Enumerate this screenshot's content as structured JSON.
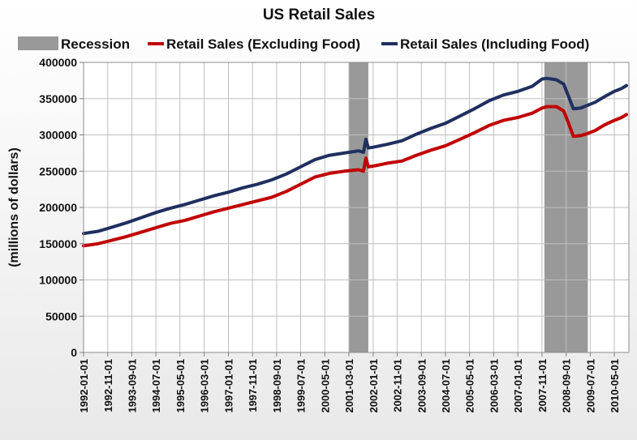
{
  "chart_data": {
    "type": "line",
    "title": "US Retail Sales",
    "ylabel": "(millions of dollars)",
    "xlabel": "",
    "ylim": [
      0,
      400000
    ],
    "yticks": [
      0,
      50000,
      100000,
      150000,
      200000,
      250000,
      300000,
      350000,
      400000
    ],
    "grid": true,
    "legend_position": "top",
    "x_tick_labels": [
      "1992-01-01",
      "1992-11-01",
      "1993-09-01",
      "1994-07-01",
      "1995-05-01",
      "1996-03-01",
      "1997-01-01",
      "1997-11-01",
      "1998-09-01",
      "1999-07-01",
      "2000-05-01",
      "2001-03-01",
      "2002-01-01",
      "2002-11-01",
      "2003-09-01",
      "2004-07-01",
      "2005-05-01",
      "2006-03-01",
      "2007-01-01",
      "2007-11-01",
      "2008-09-01",
      "2009-07-01",
      "2010-05-01"
    ],
    "legend": [
      {
        "name": "Recession",
        "color": "#999999",
        "kind": "area"
      },
      {
        "name": "Retail Sales (Excluding Food)",
        "color": "#c00000",
        "kind": "line"
      },
      {
        "name": "Retail Sales (Including Food)",
        "color": "#1f2f5f",
        "kind": "line"
      }
    ],
    "recessions": [
      {
        "start": "2001-03-01",
        "end": "2001-11-01"
      },
      {
        "start": "2007-12-01",
        "end": "2009-06-01"
      }
    ],
    "series": [
      {
        "name": "Retail Sales (Excluding Food)",
        "color": "#c00000",
        "points": [
          [
            "1992-01-01",
            147000
          ],
          [
            "1992-07-01",
            150000
          ],
          [
            "1993-01-01",
            155000
          ],
          [
            "1993-07-01",
            160000
          ],
          [
            "1994-01-01",
            166000
          ],
          [
            "1994-07-01",
            172000
          ],
          [
            "1995-01-01",
            178000
          ],
          [
            "1995-07-01",
            182000
          ],
          [
            "1996-01-01",
            188000
          ],
          [
            "1996-07-01",
            194000
          ],
          [
            "1997-01-01",
            199000
          ],
          [
            "1997-07-01",
            204000
          ],
          [
            "1998-01-01",
            209000
          ],
          [
            "1998-07-01",
            214000
          ],
          [
            "1999-01-01",
            222000
          ],
          [
            "1999-07-01",
            232000
          ],
          [
            "2000-01-01",
            242000
          ],
          [
            "2000-07-01",
            247000
          ],
          [
            "2001-01-01",
            250000
          ],
          [
            "2001-07-01",
            252000
          ],
          [
            "2001-09-01",
            250000
          ],
          [
            "2001-10-01",
            268000
          ],
          [
            "2001-11-01",
            256000
          ],
          [
            "2002-01-01",
            257000
          ],
          [
            "2002-07-01",
            261000
          ],
          [
            "2003-01-01",
            264000
          ],
          [
            "2003-07-01",
            272000
          ],
          [
            "2004-01-01",
            279000
          ],
          [
            "2004-07-01",
            285000
          ],
          [
            "2005-01-01",
            294000
          ],
          [
            "2005-07-01",
            303000
          ],
          [
            "2006-01-01",
            313000
          ],
          [
            "2006-07-01",
            320000
          ],
          [
            "2007-01-01",
            324000
          ],
          [
            "2007-07-01",
            330000
          ],
          [
            "2007-11-01",
            337000
          ],
          [
            "2008-01-01",
            339000
          ],
          [
            "2008-05-01",
            339000
          ],
          [
            "2008-08-01",
            333000
          ],
          [
            "2008-10-01",
            316000
          ],
          [
            "2008-12-01",
            298000
          ],
          [
            "2009-03-01",
            299000
          ],
          [
            "2009-06-01",
            302000
          ],
          [
            "2009-09-01",
            306000
          ],
          [
            "2010-01-01",
            314000
          ],
          [
            "2010-05-01",
            320000
          ],
          [
            "2010-08-01",
            324000
          ],
          [
            "2010-10-01",
            328000
          ]
        ]
      },
      {
        "name": "Retail Sales (Including Food)",
        "color": "#1f2f5f",
        "points": [
          [
            "1992-01-01",
            164000
          ],
          [
            "1992-07-01",
            167000
          ],
          [
            "1993-01-01",
            173000
          ],
          [
            "1993-07-01",
            179000
          ],
          [
            "1994-01-01",
            186000
          ],
          [
            "1994-07-01",
            193000
          ],
          [
            "1995-01-01",
            199000
          ],
          [
            "1995-07-01",
            204000
          ],
          [
            "1996-01-01",
            210000
          ],
          [
            "1996-07-01",
            216000
          ],
          [
            "1997-01-01",
            221000
          ],
          [
            "1997-07-01",
            227000
          ],
          [
            "1998-01-01",
            232000
          ],
          [
            "1998-07-01",
            238000
          ],
          [
            "1999-01-01",
            246000
          ],
          [
            "1999-07-01",
            256000
          ],
          [
            "2000-01-01",
            266000
          ],
          [
            "2000-07-01",
            272000
          ],
          [
            "2001-01-01",
            275000
          ],
          [
            "2001-07-01",
            278000
          ],
          [
            "2001-09-01",
            276000
          ],
          [
            "2001-10-01",
            294000
          ],
          [
            "2001-11-01",
            282000
          ],
          [
            "2002-01-01",
            283000
          ],
          [
            "2002-07-01",
            287000
          ],
          [
            "2003-01-01",
            292000
          ],
          [
            "2003-07-01",
            301000
          ],
          [
            "2004-01-01",
            309000
          ],
          [
            "2004-07-01",
            316000
          ],
          [
            "2005-01-01",
            326000
          ],
          [
            "2005-07-01",
            336000
          ],
          [
            "2006-01-01",
            347000
          ],
          [
            "2006-07-01",
            355000
          ],
          [
            "2007-01-01",
            360000
          ],
          [
            "2007-07-01",
            367000
          ],
          [
            "2007-11-01",
            377000
          ],
          [
            "2008-01-01",
            378000
          ],
          [
            "2008-05-01",
            376000
          ],
          [
            "2008-08-01",
            370000
          ],
          [
            "2008-10-01",
            353000
          ],
          [
            "2008-12-01",
            336000
          ],
          [
            "2009-03-01",
            337000
          ],
          [
            "2009-06-01",
            341000
          ],
          [
            "2009-09-01",
            345000
          ],
          [
            "2010-01-01",
            353000
          ],
          [
            "2010-05-01",
            360000
          ],
          [
            "2010-08-01",
            364000
          ],
          [
            "2010-10-01",
            368000
          ]
        ]
      }
    ]
  }
}
